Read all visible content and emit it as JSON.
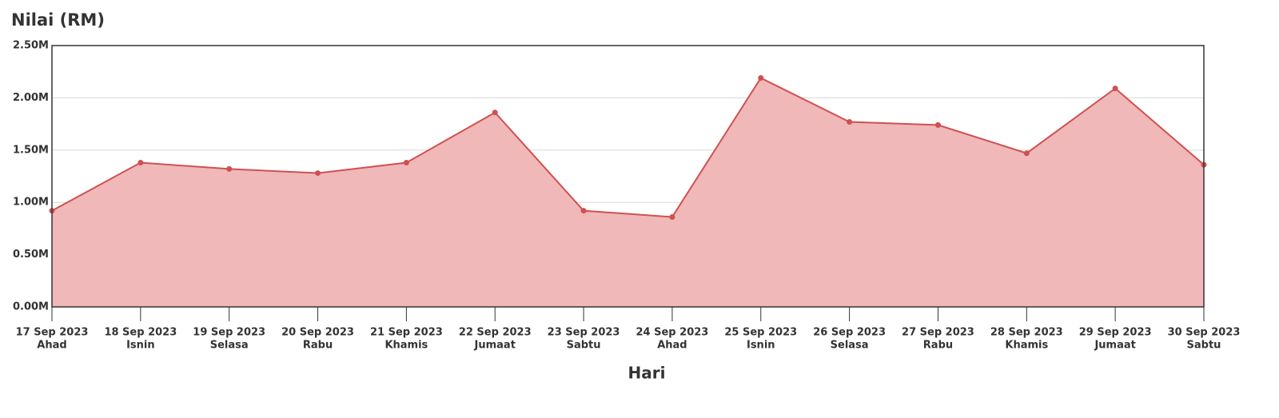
{
  "chart_data": {
    "type": "area",
    "title": "Nilai (RM)",
    "x_label": "Hari",
    "categories": [
      [
        "17 Sep 2023",
        "Ahad"
      ],
      [
        "18 Sep 2023",
        "Isnin"
      ],
      [
        "19 Sep 2023",
        "Selasa"
      ],
      [
        "20 Sep 2023",
        "Rabu"
      ],
      [
        "21 Sep 2023",
        "Khamis"
      ],
      [
        "22 Sep 2023",
        "Jumaat"
      ],
      [
        "23 Sep 2023",
        "Sabtu"
      ],
      [
        "24 Sep 2023",
        "Ahad"
      ],
      [
        "25 Sep 2023",
        "Isnin"
      ],
      [
        "26 Sep 2023",
        "Selasa"
      ],
      [
        "27 Sep 2023",
        "Rabu"
      ],
      [
        "28 Sep 2023",
        "Khamis"
      ],
      [
        "29 Sep 2023",
        "Jumaat"
      ],
      [
        "30 Sep 2023",
        "Sabtu"
      ]
    ],
    "values": [
      0.92,
      1.38,
      1.32,
      1.28,
      1.38,
      1.86,
      0.92,
      0.86,
      2.19,
      1.77,
      1.74,
      1.47,
      2.09,
      1.36
    ],
    "color": "#d05050",
    "fill": "#f0b8b8",
    "ylim": [
      0,
      2.5
    ],
    "yticks": [
      {
        "value": 0,
        "label": "0.00M"
      },
      {
        "value": 0.5,
        "label": "0.50M"
      },
      {
        "value": 1,
        "label": "1.00M"
      },
      {
        "value": 1.5,
        "label": "1.50M"
      },
      {
        "value": 2,
        "label": "2.00M"
      },
      {
        "value": 2.5,
        "label": "2.50M"
      }
    ],
    "grid": true
  }
}
